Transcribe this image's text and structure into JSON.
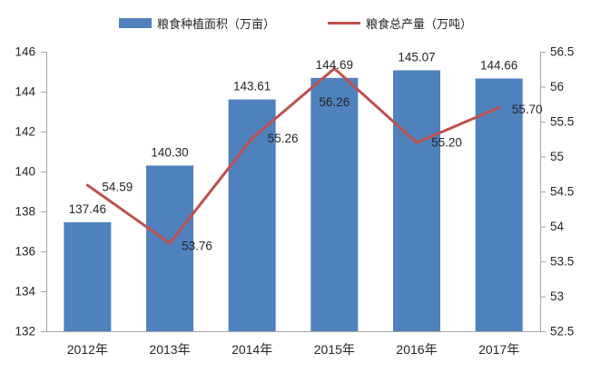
{
  "chart_data": {
    "type": "combo",
    "categories": [
      "2012年",
      "2013年",
      "2014年",
      "2015年",
      "2016年",
      "2017年"
    ],
    "series": [
      {
        "name": "粮食种植面积（万亩）",
        "type": "bar",
        "axis": "left",
        "color": "#4f81bd",
        "values": [
          137.46,
          140.3,
          143.61,
          144.69,
          145.07,
          144.66
        ]
      },
      {
        "name": "粮食总产量（万吨）",
        "type": "line",
        "axis": "right",
        "color": "#c0504d",
        "values": [
          54.59,
          53.76,
          55.26,
          56.26,
          55.2,
          55.7
        ]
      }
    ],
    "axes": {
      "left": {
        "min": 132,
        "max": 146,
        "step": 2,
        "tick_labels": [
          "146",
          "144",
          "142",
          "140",
          "138",
          "136",
          "134",
          "132"
        ]
      },
      "right": {
        "min": 52.5,
        "max": 56.5,
        "step": 0.5,
        "tick_labels": [
          "56.5",
          "56",
          "55.5",
          "55",
          "54.5",
          "54",
          "53.5",
          "53",
          "52.5"
        ]
      }
    },
    "legend_position": "top",
    "grid": false,
    "axis_color": "#a6a6a6",
    "text_color": "#262626",
    "background_color": "#ffffff"
  }
}
